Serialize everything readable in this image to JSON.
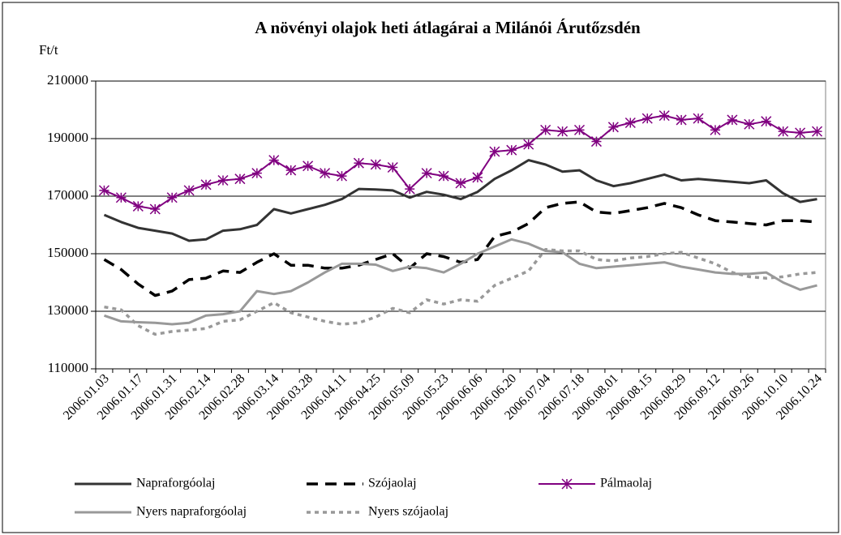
{
  "chart_data": {
    "type": "line",
    "title": "A növényi olajok heti átlagárai a Milánói Árutőzsdén",
    "y_label": "Ft/t",
    "categories": [
      "2006.01.03",
      null,
      "2006.01.17",
      null,
      "2006.01.31",
      null,
      "2006.02.14",
      null,
      "2006.02.28",
      null,
      "2006.03.14",
      null,
      "2006.03.28",
      null,
      "2006.04.11",
      null,
      "2006.04.25",
      null,
      "2006.05.09",
      null,
      "2006.05.23",
      null,
      "2006.06.06",
      null,
      "2006.06.20",
      null,
      "2006.07.04",
      null,
      "2006.07.18",
      null,
      "2006.08.01",
      null,
      "2006.08.15",
      null,
      "2006.08.29",
      null,
      "2006.09.12",
      null,
      "2006.09.26",
      null,
      "2006.10.10",
      null,
      "2006.10.24"
    ],
    "ylim": [
      110000,
      210000
    ],
    "yticks": [
      110000,
      130000,
      150000,
      170000,
      190000,
      210000
    ],
    "grid": true,
    "legend": "bottom",
    "series": [
      {
        "name": "Napraforgóolaj",
        "color": "#333333",
        "dash": "none",
        "marker": "none",
        "values": [
          163500,
          161000,
          159000,
          158000,
          157000,
          154500,
          155000,
          158000,
          158500,
          160000,
          165500,
          164000,
          165500,
          167000,
          169000,
          172500,
          172300,
          172000,
          169500,
          171500,
          170500,
          169000,
          171500,
          176000,
          179000,
          182500,
          181000,
          178500,
          179000,
          175500,
          173500,
          174500,
          176000,
          177500,
          175500,
          176000,
          175500,
          175000,
          174500,
          175500,
          171000,
          168000,
          169000
        ]
      },
      {
        "name": "Szójaolaj",
        "color": "#000000",
        "dash": "14,9",
        "marker": "none",
        "values": [
          148000,
          144500,
          139500,
          135500,
          137000,
          141000,
          141500,
          144000,
          143500,
          147000,
          150000,
          146000,
          146000,
          145000,
          145000,
          146000,
          148000,
          150000,
          145000,
          150000,
          149000,
          147000,
          148000,
          156000,
          157500,
          160500,
          166000,
          167500,
          168000,
          164500,
          164000,
          165000,
          166000,
          167500,
          166000,
          163500,
          161500,
          161000,
          160500,
          160000,
          161500,
          161500,
          161000
        ]
      },
      {
        "name": "Pálmaolaj",
        "color": "#800080",
        "dash": "none",
        "marker": "asterisk",
        "values": [
          172000,
          169500,
          166500,
          165500,
          169500,
          172000,
          174000,
          175500,
          176000,
          178000,
          182500,
          179000,
          180500,
          178000,
          177000,
          181500,
          181000,
          180000,
          172500,
          178000,
          177000,
          174500,
          176500,
          185500,
          186000,
          188000,
          193000,
          192500,
          193000,
          189000,
          194000,
          195500,
          197000,
          198000,
          196500,
          197000,
          193000,
          196500,
          195000,
          196000,
          192500,
          192000,
          192500
        ]
      },
      {
        "name": "Nyers napraforgóolaj",
        "color": "#999999",
        "dash": "none",
        "marker": "none",
        "values": [
          128500,
          126500,
          126200,
          126000,
          125500,
          126000,
          128500,
          129000,
          130000,
          137000,
          136000,
          137000,
          140000,
          143500,
          146500,
          146500,
          146200,
          144000,
          145500,
          145000,
          143500,
          146500,
          150000,
          152500,
          155000,
          153500,
          151000,
          150500,
          146500,
          145000,
          145500,
          146000,
          146500,
          147000,
          145500,
          144500,
          143500,
          143000,
          143000,
          143500,
          140000,
          137500,
          139000
        ]
      },
      {
        "name": "Nyers szójaolaj",
        "color": "#999999",
        "dash": "5,5",
        "marker": "none",
        "values": [
          131500,
          130500,
          125000,
          122000,
          123000,
          123500,
          124000,
          126500,
          127000,
          130000,
          133000,
          129500,
          128000,
          126500,
          125500,
          126000,
          128000,
          131000,
          129500,
          134000,
          132500,
          134000,
          133500,
          139000,
          141500,
          144000,
          151500,
          151000,
          151000,
          148000,
          147500,
          148500,
          149000,
          150000,
          150500,
          148500,
          146500,
          143500,
          142000,
          141500,
          142000,
          143000,
          143500
        ]
      }
    ]
  }
}
